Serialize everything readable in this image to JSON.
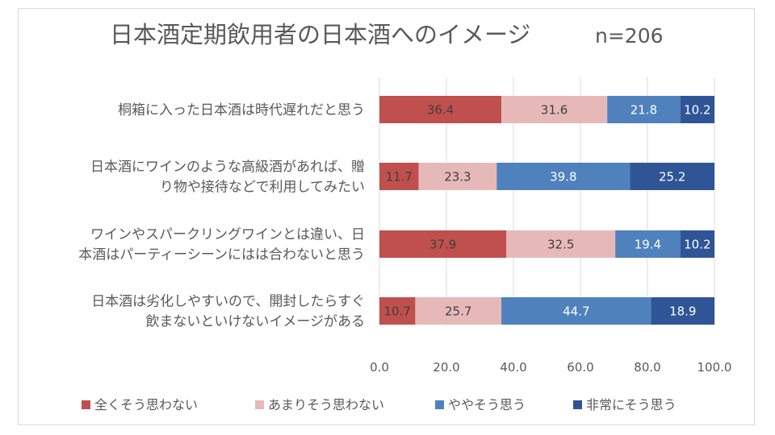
{
  "chart_data": {
    "type": "bar",
    "orientation": "horizontal-stacked",
    "title": "日本酒定期飲用者の日本酒へのイメージ",
    "n_label": "n=206",
    "categories": [
      [
        "桐箱に入った日本酒は時代遅れだと思う"
      ],
      [
        "日本酒にワインのような高級酒があれば、贈",
        "り物や接待などで利用してみたい"
      ],
      [
        "ワインやスパークリングワインとは違い、日",
        "本酒はパーティーシーンにはは合わないと思う"
      ],
      [
        "日本酒は劣化しやすいので、開封したらすぐ",
        "飲まないといけないイメージがある"
      ]
    ],
    "series": [
      {
        "name": "全くそう思わない",
        "color": "#c0504d",
        "label_color": "#3f3f3f",
        "values": [
          36.4,
          11.7,
          37.9,
          10.7
        ]
      },
      {
        "name": "あまりそう思わない",
        "color": "#e6b9b8",
        "label_color": "#3f3f3f",
        "values": [
          31.6,
          23.3,
          32.5,
          25.7
        ]
      },
      {
        "name": "ややそう思う",
        "color": "#4f81bd",
        "label_color": "#ffffff",
        "values": [
          21.8,
          39.8,
          19.4,
          44.7
        ]
      },
      {
        "name": "非常にそう思う",
        "color": "#2f5597",
        "label_color": "#ffffff",
        "values": [
          10.2,
          25.2,
          10.2,
          18.9
        ]
      }
    ],
    "xlim": [
      0,
      100
    ],
    "xticks": [
      "0.0",
      "20.0",
      "40.0",
      "60.0",
      "80.0",
      "100.0"
    ],
    "grid": true,
    "legend_position": "bottom"
  }
}
